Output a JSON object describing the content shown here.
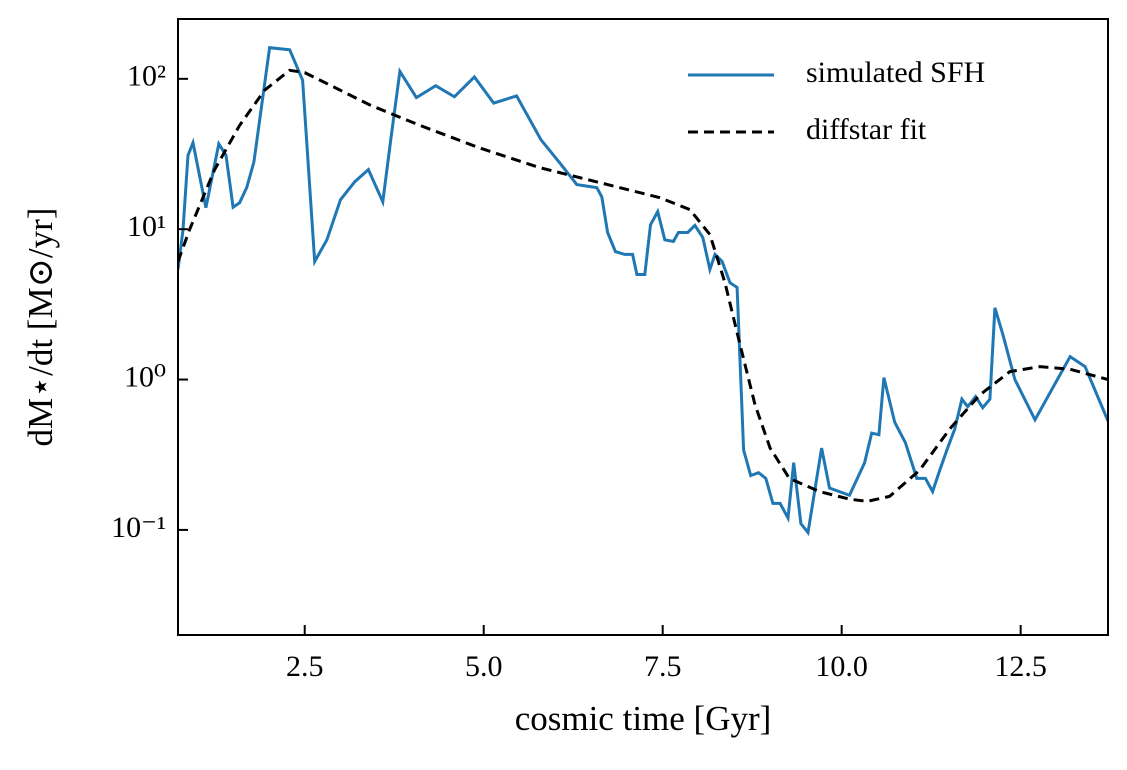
{
  "chart_data": {
    "type": "line",
    "xlabel": "cosmic time [Gyr]",
    "ylabel": "dM⋆/dt [M⊙/yr]",
    "xlim": [
      0.73,
      13.72
    ],
    "ylim": [
      0.02,
      250
    ],
    "yscale": "log",
    "xticks": [
      2.5,
      {
        "value": 5,
        "label": "5.0"
      },
      7.5,
      {
        "value": 10,
        "label": "10.0"
      },
      12.5
    ],
    "yticks": [
      {
        "value": 0.1,
        "label": "10⁻¹"
      },
      {
        "value": 1,
        "label": "10⁰"
      },
      {
        "value": 10,
        "label": "10¹"
      },
      {
        "value": 100,
        "label": "10²"
      }
    ],
    "grid": false,
    "legend": "upper right",
    "series": [
      {
        "name": "simulated SFH",
        "color": "#1f77b4",
        "dash": "solid",
        "x": [
          0.73,
          0.8,
          0.87,
          0.94,
          1.12,
          1.3,
          1.4,
          1.5,
          1.59,
          1.69,
          1.79,
          2.01,
          2.29,
          2.47,
          2.64,
          2.81,
          3.0,
          3.2,
          3.39,
          3.59,
          3.71,
          3.83,
          4.06,
          4.33,
          4.59,
          4.87,
          5.14,
          5.46,
          5.8,
          6.06,
          6.3,
          6.58,
          6.65,
          6.73,
          6.84,
          6.97,
          7.08,
          7.14,
          7.25,
          7.33,
          7.43,
          7.53,
          7.65,
          7.72,
          7.85,
          7.95,
          8.06,
          8.16,
          8.23,
          8.33,
          8.44,
          8.54,
          8.63,
          8.73,
          8.84,
          8.94,
          9.04,
          9.14,
          9.25,
          9.33,
          9.43,
          9.53,
          9.72,
          9.83,
          10.11,
          10.32,
          10.42,
          10.52,
          10.59,
          10.74,
          10.89,
          11.05,
          11.17,
          11.27,
          11.37,
          11.47,
          11.58,
          11.68,
          11.76,
          11.87,
          11.97,
          12.07,
          12.14,
          12.25,
          12.42,
          12.7,
          13.19,
          13.4,
          13.72
        ],
        "values": [
          5.4,
          9.9,
          31,
          37.6,
          13.9,
          37,
          31,
          14,
          15,
          18.9,
          28,
          161,
          156,
          98,
          6.1,
          8.5,
          15.7,
          20.7,
          24.9,
          15.2,
          42,
          112,
          75,
          90,
          76,
          103,
          69,
          77,
          39.3,
          27.7,
          19.8,
          18.9,
          16.4,
          9.5,
          7.1,
          6.8,
          6.8,
          5.0,
          5.0,
          10.7,
          13.1,
          8.5,
          8.3,
          9.5,
          9.5,
          10.6,
          8.8,
          5.4,
          6.8,
          6.1,
          4.4,
          4.1,
          0.34,
          0.23,
          0.24,
          0.22,
          0.15,
          0.15,
          0.12,
          0.28,
          0.11,
          0.096,
          0.35,
          0.19,
          0.17,
          0.28,
          0.44,
          0.43,
          1.03,
          0.52,
          0.38,
          0.22,
          0.22,
          0.18,
          0.25,
          0.34,
          0.47,
          0.74,
          0.66,
          0.77,
          0.65,
          0.74,
          3.0,
          2.0,
          1.0,
          0.54,
          1.42,
          1.22,
          0.53
        ]
      },
      {
        "name": "diffstar fit",
        "color": "#000000",
        "dash": "dashed",
        "x": [
          0.73,
          0.89,
          1.24,
          1.59,
          1.94,
          2.29,
          2.5,
          2.85,
          3.41,
          4.11,
          4.94,
          5.78,
          6.62,
          7.46,
          7.88,
          8.16,
          8.37,
          8.58,
          8.79,
          9.0,
          9.27,
          9.69,
          10.11,
          10.36,
          10.67,
          11.09,
          11.51,
          11.93,
          12.35,
          12.77,
          13.19,
          13.72
        ],
        "values": [
          6.1,
          9.9,
          24.8,
          49,
          84,
          114,
          110,
          91,
          67,
          49,
          34.7,
          25.7,
          20.4,
          16.2,
          13.5,
          9.2,
          4.4,
          1.71,
          0.68,
          0.35,
          0.22,
          0.18,
          0.16,
          0.155,
          0.167,
          0.25,
          0.47,
          0.79,
          1.13,
          1.22,
          1.17,
          1.0
        ]
      }
    ]
  }
}
